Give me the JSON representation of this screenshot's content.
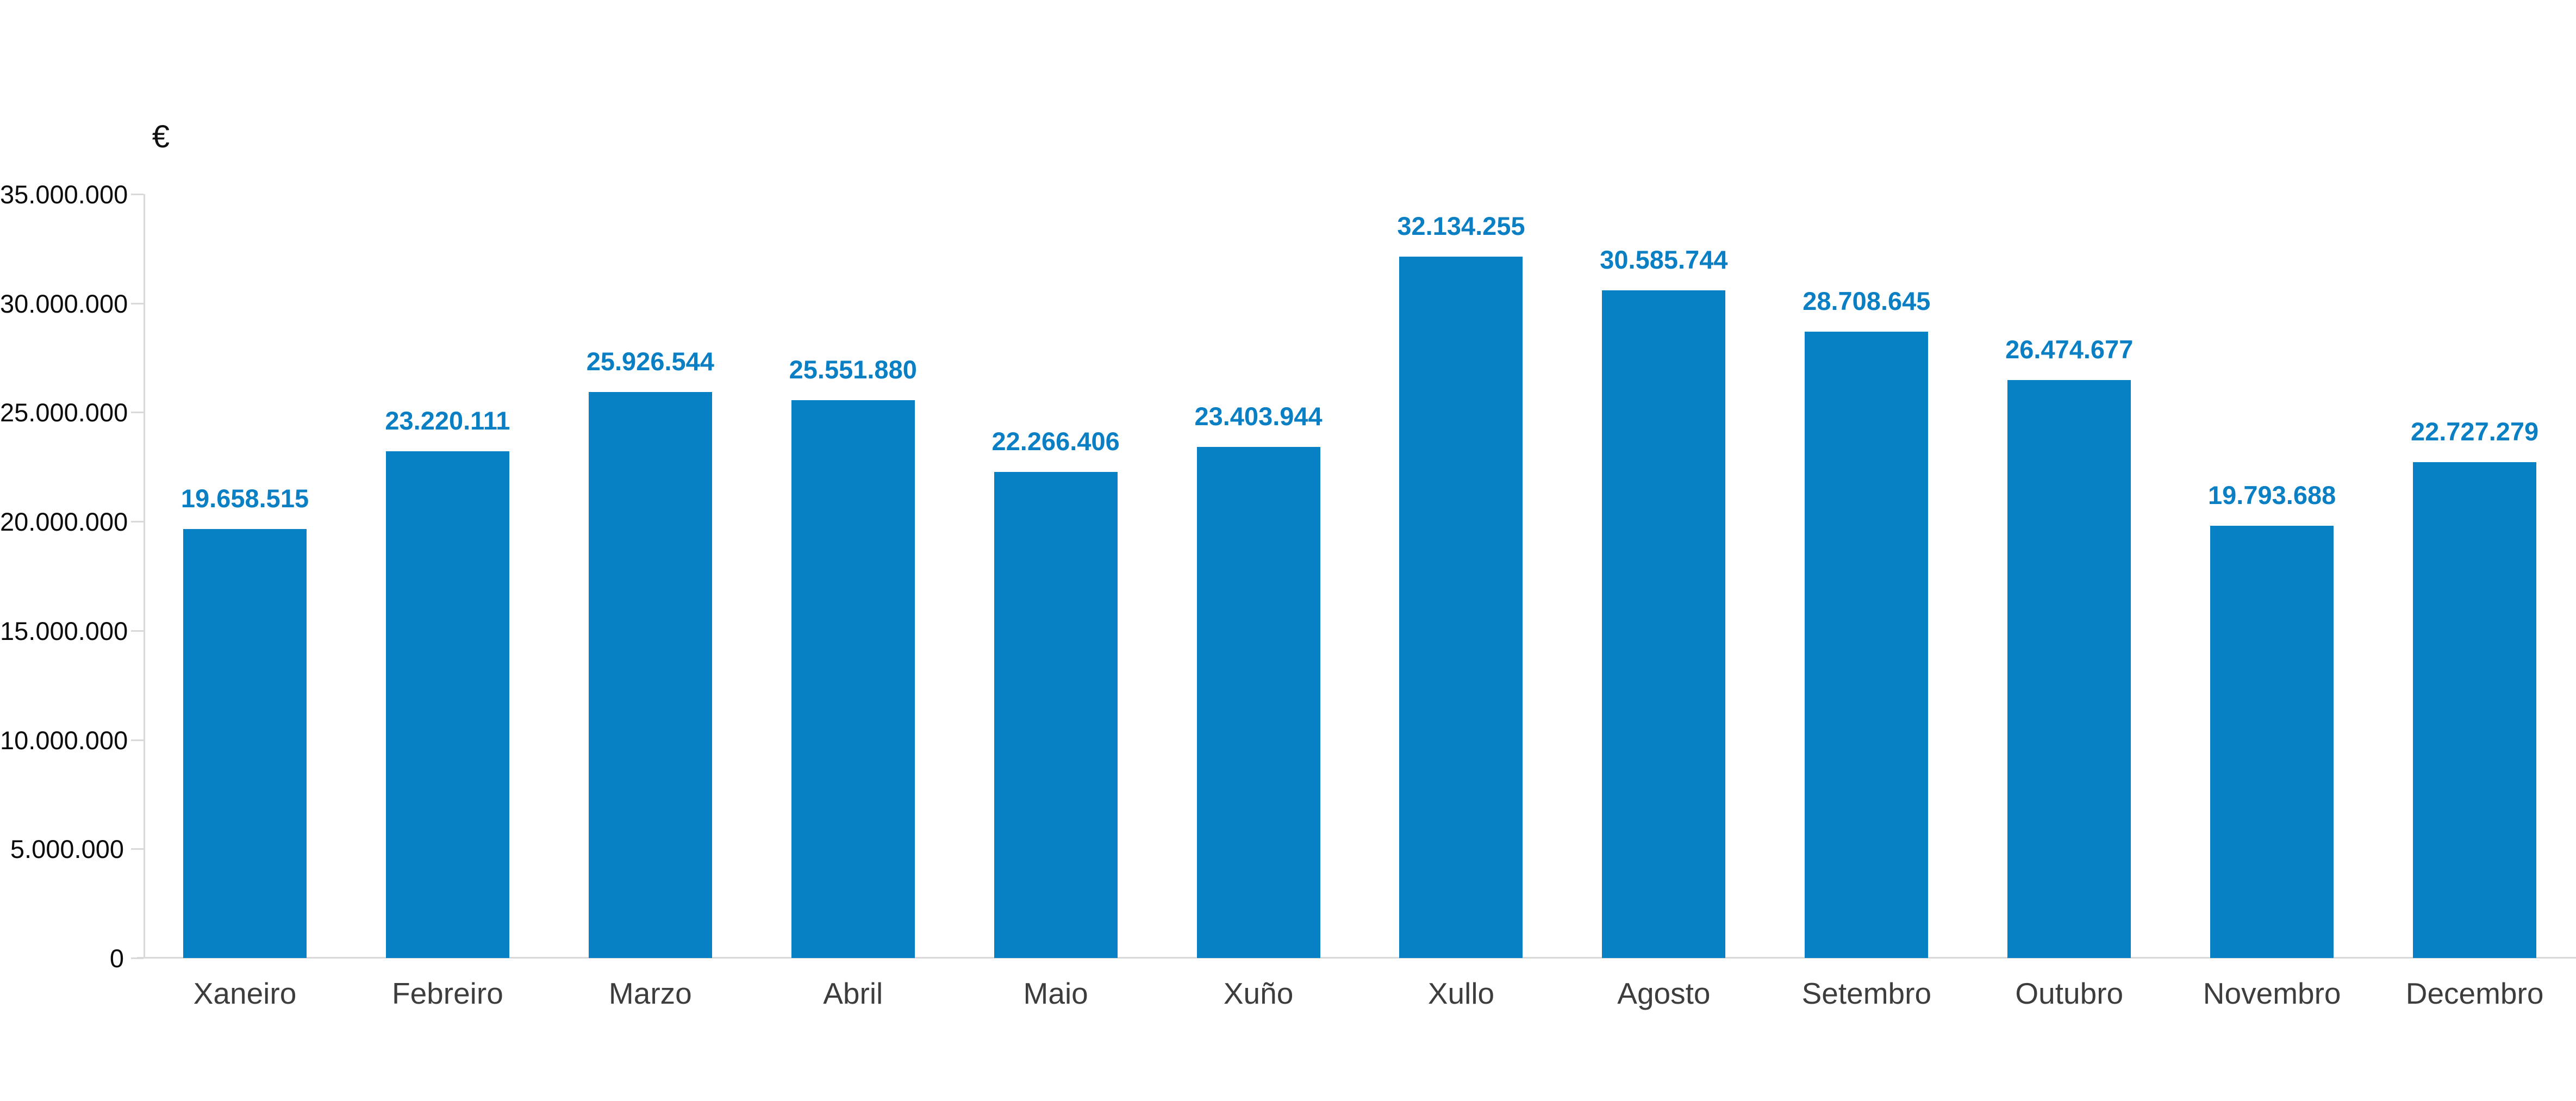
{
  "chart_data": {
    "type": "bar",
    "title": "",
    "unit_label": "€",
    "categories": [
      "Xaneiro",
      "Febreiro",
      "Marzo",
      "Abril",
      "Maio",
      "Xuño",
      "Xullo",
      "Agosto",
      "Setembro",
      "Outubro",
      "Novembro",
      "Decembro"
    ],
    "values": [
      19658515,
      23220111,
      25926544,
      25551880,
      22266406,
      23403944,
      32134255,
      30585744,
      28708645,
      26474677,
      19793688,
      22727279
    ],
    "value_labels": [
      "19.658.515",
      "23.220.111",
      "25.926.544",
      "25.551.880",
      "22.266.406",
      "23.403.944",
      "32.134.255",
      "30.585.744",
      "28.708.645",
      "26.474.677",
      "19.793.688",
      "22.727.279"
    ],
    "ylim": [
      0,
      35000000
    ],
    "yticks": [
      {
        "value": 0,
        "label": "0"
      },
      {
        "value": 5000000,
        "label": "5.000.000"
      },
      {
        "value": 10000000,
        "label": "10.000.000"
      },
      {
        "value": 15000000,
        "label": "15.000.000"
      },
      {
        "value": 20000000,
        "label": "20.000.000"
      },
      {
        "value": 25000000,
        "label": "25.000.000"
      },
      {
        "value": 30000000,
        "label": "30.000.000"
      },
      {
        "value": 35000000,
        "label": "35.000.000"
      }
    ],
    "grid": false,
    "legend": "none",
    "colors": {
      "bar": "#0880c4",
      "value_label": "#0a7fc4",
      "axis": "#d9d9d9",
      "ytick_label": "#0b0b0b",
      "xtick_label": "#3d3d3d"
    }
  }
}
